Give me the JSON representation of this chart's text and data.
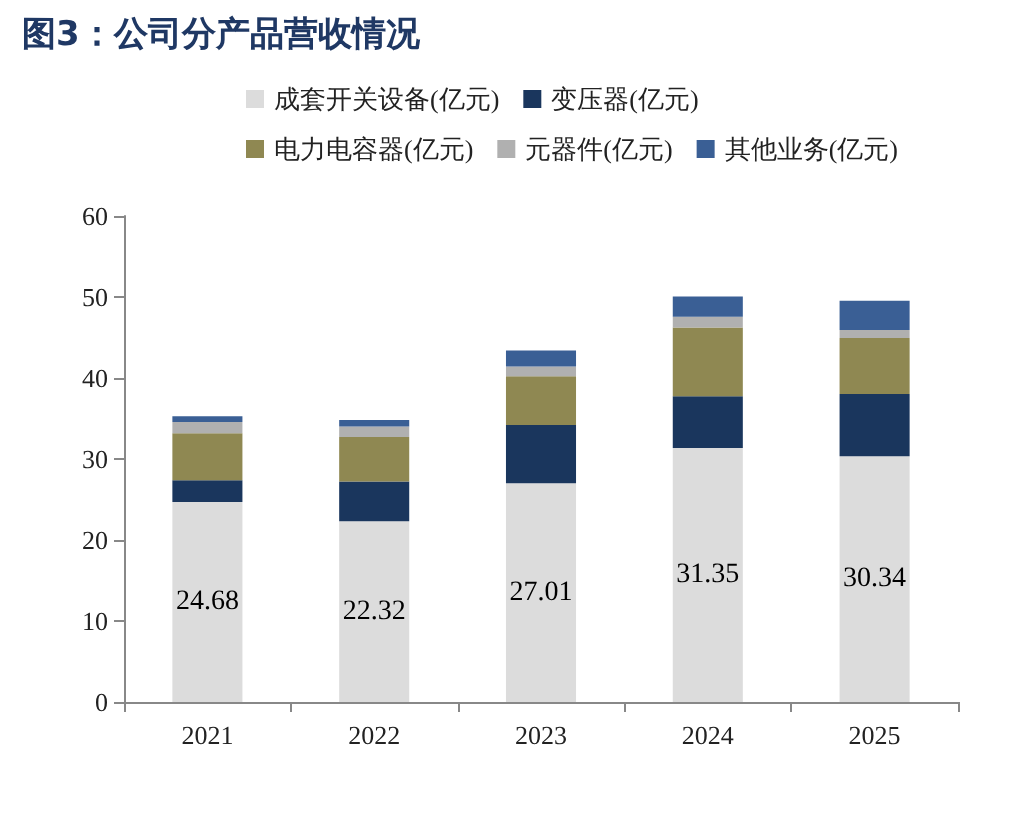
{
  "chart_data": {
    "type": "bar",
    "title": "图3：公司分产品营收情况",
    "categories": [
      "2021",
      "2022",
      "2023",
      "2024",
      "2025"
    ],
    "stacked": true,
    "legend": "top",
    "grid": false,
    "ylim": [
      0,
      60
    ],
    "yticks": [
      0,
      10,
      20,
      30,
      40,
      50,
      60
    ],
    "series": [
      {
        "name": "成套开关设备(亿元)",
        "color": "#dcdcdc",
        "values": [
          24.68,
          22.32,
          27.01,
          31.35,
          30.34
        ],
        "value_labels": [
          "24.68",
          "22.32",
          "27.01",
          "31.35",
          "30.34"
        ]
      },
      {
        "name": "变压器(亿元)",
        "color": "#1a365d",
        "values": [
          2.7,
          4.9,
          7.2,
          6.4,
          7.7
        ]
      },
      {
        "name": "电力电容器(亿元)",
        "color": "#8f8852",
        "values": [
          5.8,
          5.5,
          6.0,
          8.5,
          6.9
        ]
      },
      {
        "name": "元器件(亿元)",
        "color": "#b0b0b0",
        "values": [
          1.4,
          1.3,
          1.2,
          1.3,
          1.0
        ]
      },
      {
        "name": "其他业务(亿元)",
        "color": "#3a5f95",
        "values": [
          0.7,
          0.8,
          2.0,
          2.5,
          3.6
        ]
      }
    ]
  }
}
